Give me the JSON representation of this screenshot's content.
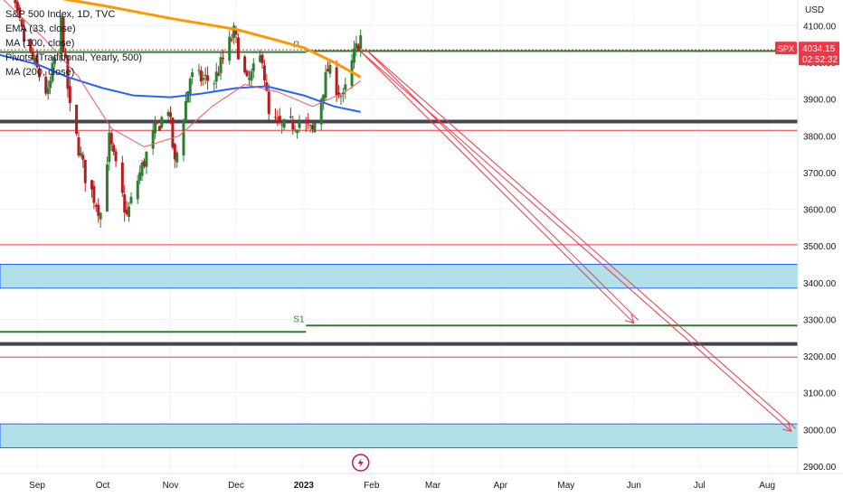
{
  "legend": {
    "title": "S&P 500 Index, 1D, TVC",
    "ema": "EMA (33, close)",
    "ma100": "MA (100, close)",
    "pivots": "Pivots (Traditional, Yearly, 500)",
    "ma200": "MA (200, close)"
  },
  "price_scale": {
    "currency": "USD",
    "ticker_badge": "SPX",
    "last_price": "4034.15",
    "countdown": "02:52:32"
  },
  "colors": {
    "up": "#26a69a",
    "candle_up": "#2e7d32",
    "candle_down": "#b71c1c",
    "ema33": "#f7525f",
    "ma100": "#2962ff",
    "ma200": "#ff9800",
    "pivot": "#2e7d32",
    "support_line": "#f23645",
    "zone_fill": "#b2e0e8",
    "zone_border": "#2962ff",
    "arrow": "#f23645"
  },
  "chart_data": {
    "type": "candlestick",
    "y_axis": {
      "range": [
        2880,
        4170
      ],
      "ticks": [
        2900,
        3000,
        3100,
        3200,
        3300,
        3400,
        3500,
        3600,
        3700,
        3800,
        3900,
        4000,
        4100
      ],
      "tick_labels": [
        "2900.00",
        "3000.00",
        "3100.00",
        "3200.00",
        "3300.00",
        "3400.00",
        "3500.00",
        "3600.00",
        "3700.00",
        "3800.00",
        "3900.00",
        "4000.00",
        "4100.00"
      ]
    },
    "x_axis": {
      "labels": [
        {
          "text": "Sep",
          "date": "2022-09-01"
        },
        {
          "text": "Oct",
          "date": "2022-10-01"
        },
        {
          "text": "Nov",
          "date": "2022-11-01"
        },
        {
          "text": "Dec",
          "date": "2022-12-01"
        },
        {
          "text": "2023",
          "date": "2023-01-01",
          "bold": true
        },
        {
          "text": "Feb",
          "date": "2023-02-01"
        },
        {
          "text": "Mar",
          "date": "2023-03-01"
        },
        {
          "text": "Apr",
          "date": "2023-04-01"
        },
        {
          "text": "May",
          "date": "2023-05-01"
        },
        {
          "text": "Jun",
          "date": "2023-06-01"
        },
        {
          "text": "Jul",
          "date": "2023-07-01"
        },
        {
          "text": "Aug",
          "date": "2023-08-01"
        }
      ],
      "range": [
        "2022-08-15",
        "2023-08-15"
      ]
    },
    "price_path": [
      [
        "2022-08-15",
        4280
      ],
      [
        "2022-08-26",
        4060
      ],
      [
        "2022-09-06",
        3910
      ],
      [
        "2022-09-12",
        4110
      ],
      [
        "2022-09-16",
        3870
      ],
      [
        "2022-09-23",
        3690
      ],
      [
        "2022-09-30",
        3590
      ],
      [
        "2022-10-04",
        3790
      ],
      [
        "2022-10-12",
        3580
      ],
      [
        "2022-10-17",
        3680
      ],
      [
        "2022-10-24",
        3800
      ],
      [
        "2022-10-31",
        3880
      ],
      [
        "2022-11-03",
        3720
      ],
      [
        "2022-11-10",
        3960
      ],
      [
        "2022-11-21",
        3950
      ],
      [
        "2022-11-30",
        4080
      ],
      [
        "2022-12-06",
        3940
      ],
      [
        "2022-12-13",
        4020
      ],
      [
        "2022-12-16",
        3850
      ],
      [
        "2022-12-22",
        3820
      ],
      [
        "2022-12-30",
        3840
      ],
      [
        "2023-01-05",
        3810
      ],
      [
        "2023-01-12",
        3980
      ],
      [
        "2023-01-19",
        3900
      ],
      [
        "2023-01-24",
        4020
      ],
      [
        "2023-01-27",
        4070
      ]
    ],
    "ema33": [
      [
        "2022-08-15",
        4180
      ],
      [
        "2022-09-05",
        4060
      ],
      [
        "2022-09-20",
        3960
      ],
      [
        "2022-10-05",
        3820
      ],
      [
        "2022-10-20",
        3770
      ],
      [
        "2022-11-05",
        3800
      ],
      [
        "2022-11-20",
        3880
      ],
      [
        "2022-12-05",
        3940
      ],
      [
        "2022-12-20",
        3920
      ],
      [
        "2023-01-05",
        3880
      ],
      [
        "2023-01-20",
        3920
      ],
      [
        "2023-01-27",
        3950
      ]
    ],
    "ma100": [
      [
        "2022-08-15",
        4020
      ],
      [
        "2022-09-01",
        3995
      ],
      [
        "2022-09-15",
        3960
      ],
      [
        "2022-10-01",
        3930
      ],
      [
        "2022-10-15",
        3910
      ],
      [
        "2022-11-01",
        3905
      ],
      [
        "2022-11-15",
        3915
      ],
      [
        "2022-12-01",
        3930
      ],
      [
        "2022-12-15",
        3935
      ],
      [
        "2023-01-01",
        3910
      ],
      [
        "2023-01-15",
        3880
      ],
      [
        "2023-01-27",
        3865
      ]
    ],
    "ma200": [
      [
        "2022-08-15",
        4210
      ],
      [
        "2022-09-01",
        4185
      ],
      [
        "2022-10-01",
        4155
      ],
      [
        "2022-11-01",
        4120
      ],
      [
        "2022-12-01",
        4090
      ],
      [
        "2022-12-15",
        4068
      ],
      [
        "2023-01-01",
        4040
      ],
      [
        "2023-01-15",
        4000
      ],
      [
        "2023-01-27",
        3960
      ]
    ],
    "horizontal_lines": [
      {
        "price": 4031,
        "kind": "pivot",
        "label": "P",
        "from": "2023-01-02"
      },
      {
        "price": 4028,
        "kind": "pivot",
        "from": "2022-08-15",
        "to": "2023-01-02"
      },
      {
        "price": 3839,
        "kind": "gray"
      },
      {
        "price": 3815,
        "kind": "red"
      },
      {
        "price": 3503,
        "kind": "red"
      },
      {
        "price": 3283,
        "kind": "pivot",
        "label": "S1",
        "from": "2023-01-02"
      },
      {
        "price": 3266,
        "kind": "pivot",
        "from": "2022-08-15",
        "to": "2023-01-02"
      },
      {
        "price": 3233,
        "kind": "gray"
      },
      {
        "price": 3197,
        "kind": "red"
      }
    ],
    "zones": [
      {
        "top": 3450,
        "bottom": 3385
      },
      {
        "top": 3015,
        "bottom": 2950
      }
    ],
    "projections": [
      {
        "from": [
          "2023-01-27",
          4030
        ],
        "to": [
          "2023-06-01",
          3290
        ]
      },
      {
        "from": [
          "2023-01-27",
          4030
        ],
        "to": [
          "2023-08-12",
          2995
        ]
      }
    ]
  }
}
